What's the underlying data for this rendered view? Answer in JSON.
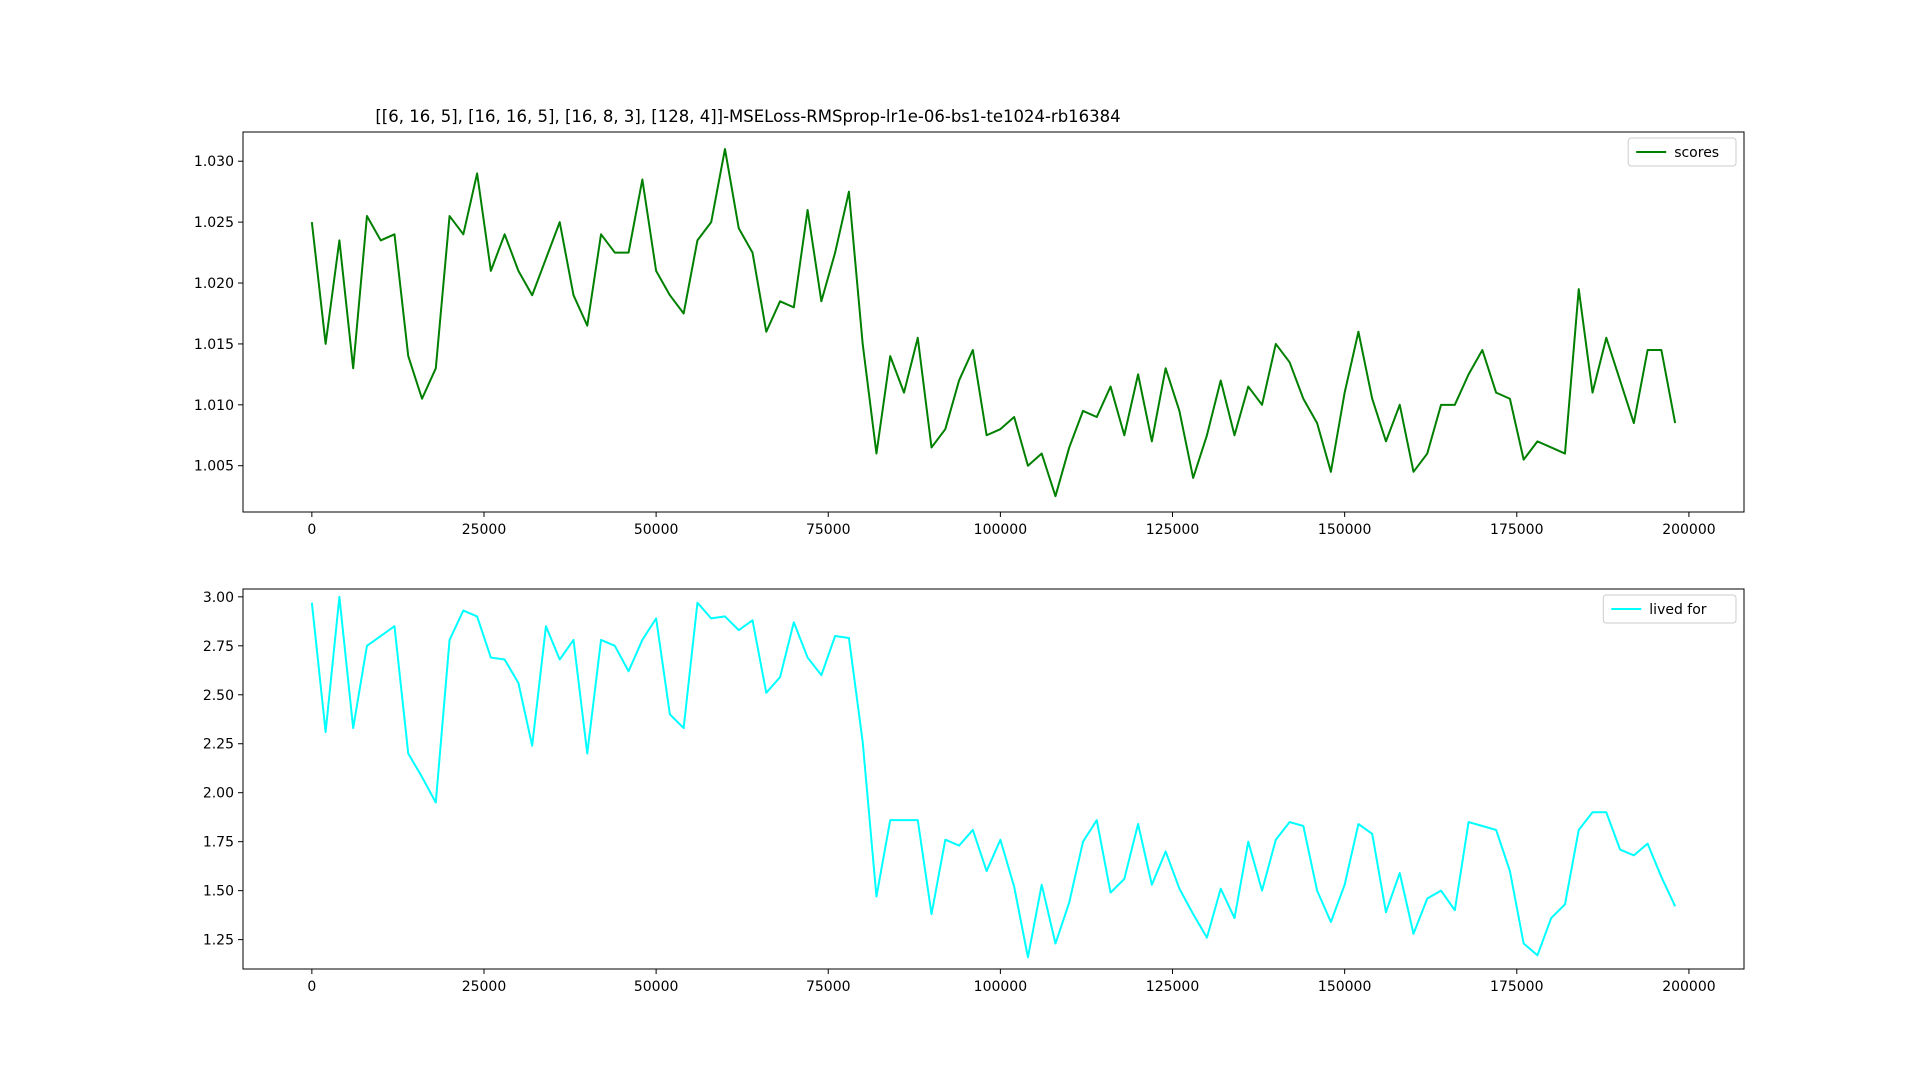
{
  "title": "[[6, 16, 5], [16, 16, 5], [16, 8, 3], [128, 4]]-MSELoss-RMSprop-lr1e-06-bs1-te1024-rb16384",
  "chart_data": [
    {
      "type": "line",
      "title": "[[6, 16, 5], [16, 16, 5], [16, 8, 3], [128, 4]]-MSELoss-RMSprop-lr1e-06-bs1-te1024-rb16384",
      "xlabel": "",
      "ylabel": "",
      "xlim": [
        -10000,
        208000
      ],
      "ylim": [
        1.0012,
        1.0324
      ],
      "xticks": [
        0,
        25000,
        50000,
        75000,
        100000,
        125000,
        150000,
        175000,
        200000
      ],
      "yticks": [
        1.005,
        1.01,
        1.015,
        1.02,
        1.025,
        1.03
      ],
      "ytick_labels": [
        "1.005",
        "1.010",
        "1.015",
        "1.020",
        "1.025",
        "1.030"
      ],
      "legend_position": "top-right",
      "grid": false,
      "series": [
        {
          "name": "scores",
          "color": "#008000",
          "x_start": 0,
          "x_step": 2000,
          "values": [
            1.025,
            1.015,
            1.0235,
            1.013,
            1.0255,
            1.0235,
            1.024,
            1.014,
            1.0105,
            1.013,
            1.0255,
            1.024,
            1.029,
            1.021,
            1.024,
            1.021,
            1.019,
            1.022,
            1.025,
            1.019,
            1.0165,
            1.024,
            1.0225,
            1.0225,
            1.0285,
            1.021,
            1.019,
            1.0175,
            1.0235,
            1.025,
            1.031,
            1.0245,
            1.0225,
            1.016,
            1.0185,
            1.018,
            1.026,
            1.0185,
            1.0225,
            1.0275,
            1.015,
            1.006,
            1.014,
            1.011,
            1.0155,
            1.0065,
            1.008,
            1.012,
            1.0145,
            1.0075,
            1.008,
            1.009,
            1.005,
            1.006,
            1.0025,
            1.0065,
            1.0095,
            1.009,
            1.0115,
            1.0075,
            1.0125,
            1.007,
            1.013,
            1.0095,
            1.004,
            1.0075,
            1.012,
            1.0075,
            1.0115,
            1.01,
            1.015,
            1.0135,
            1.0105,
            1.0085,
            1.0045,
            1.011,
            1.016,
            1.0105,
            1.007,
            1.01,
            1.0045,
            1.006,
            1.01,
            1.01,
            1.0125,
            1.0145,
            1.011,
            1.0105,
            1.0055,
            1.007,
            1.0065,
            1.006,
            1.0195,
            1.011,
            1.0155,
            1.012,
            1.0085,
            1.0145,
            1.0145,
            1.0085
          ]
        }
      ]
    },
    {
      "type": "line",
      "title": "",
      "xlabel": "",
      "ylabel": "",
      "xlim": [
        -10000,
        208000
      ],
      "ylim": [
        1.1,
        3.04
      ],
      "xticks": [
        0,
        25000,
        50000,
        75000,
        100000,
        125000,
        150000,
        175000,
        200000
      ],
      "yticks": [
        1.25,
        1.5,
        1.75,
        2.0,
        2.25,
        2.5,
        2.75,
        3.0
      ],
      "ytick_labels": [
        "1.25",
        "1.50",
        "1.75",
        "2.00",
        "2.25",
        "2.50",
        "2.75",
        "3.00"
      ],
      "legend_position": "top-right",
      "grid": false,
      "series": [
        {
          "name": "lived for",
          "color": "#00ffff",
          "x_start": 0,
          "x_step": 2000,
          "values": [
            2.97,
            2.31,
            3.0,
            2.33,
            2.75,
            2.8,
            2.85,
            2.2,
            2.08,
            1.95,
            2.78,
            2.93,
            2.9,
            2.69,
            2.68,
            2.56,
            2.24,
            2.85,
            2.68,
            2.78,
            2.2,
            2.78,
            2.75,
            2.62,
            2.78,
            2.89,
            2.4,
            2.33,
            2.97,
            2.89,
            2.9,
            2.83,
            2.88,
            2.51,
            2.59,
            2.87,
            2.69,
            2.6,
            2.8,
            2.79,
            2.26,
            1.47,
            1.86,
            1.86,
            1.86,
            1.38,
            1.76,
            1.73,
            1.81,
            1.6,
            1.76,
            1.52,
            1.16,
            1.53,
            1.23,
            1.44,
            1.75,
            1.86,
            1.49,
            1.56,
            1.84,
            1.53,
            1.7,
            1.51,
            1.38,
            1.26,
            1.51,
            1.36,
            1.75,
            1.5,
            1.76,
            1.85,
            1.83,
            1.5,
            1.34,
            1.53,
            1.84,
            1.79,
            1.39,
            1.59,
            1.28,
            1.46,
            1.5,
            1.4,
            1.85,
            1.83,
            1.81,
            1.6,
            1.23,
            1.17,
            1.36,
            1.43,
            1.81,
            1.9,
            1.9,
            1.71,
            1.68,
            1.74,
            1.57,
            1.42
          ]
        }
      ]
    }
  ]
}
